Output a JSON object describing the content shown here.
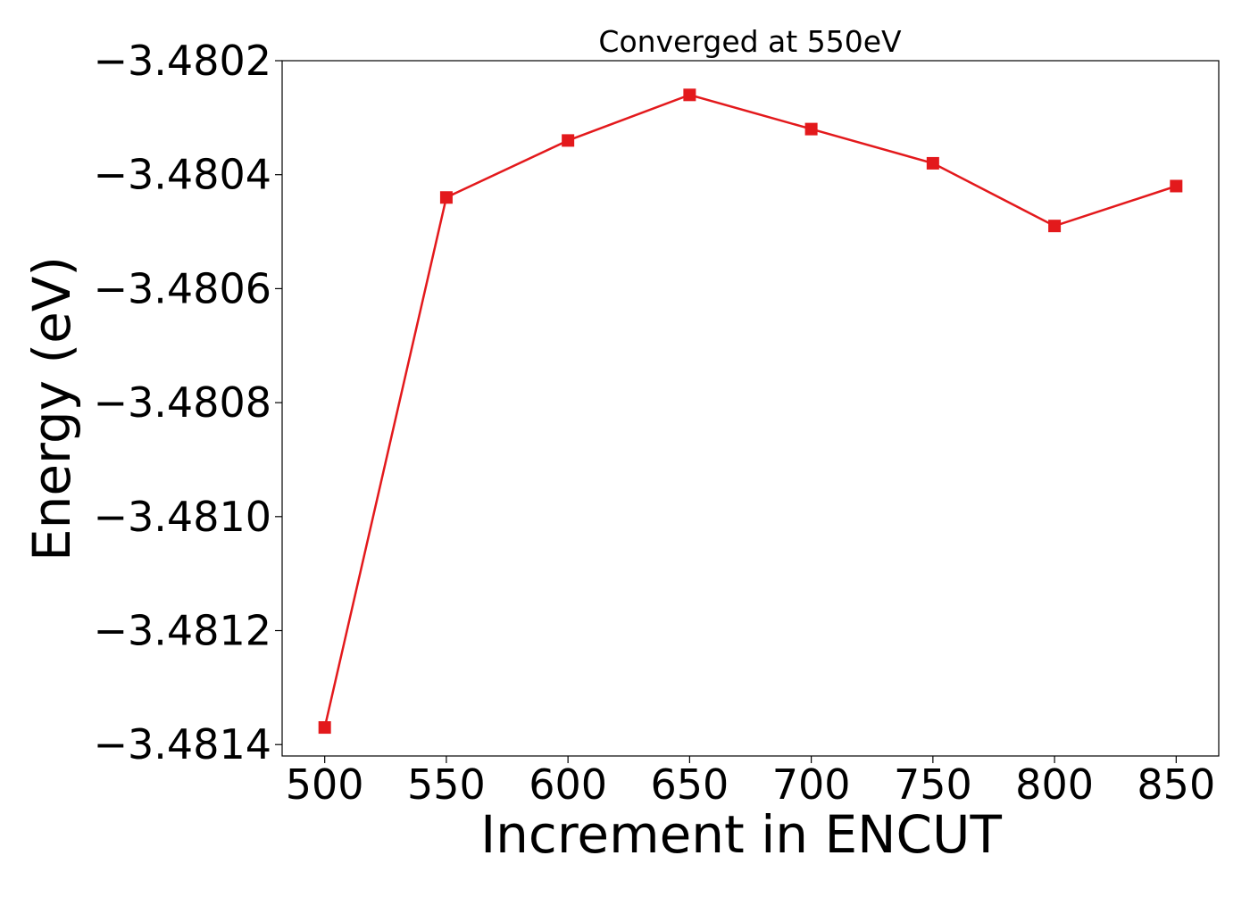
{
  "chart_data": {
    "type": "line",
    "title": "Converged at 550eV",
    "xlabel": "Increment in ENCUT",
    "ylabel": "Energy (eV)",
    "x": [
      500,
      550,
      600,
      650,
      700,
      750,
      800,
      850
    ],
    "series": [
      {
        "values": [
          -3.48137,
          -3.48044,
          -3.48034,
          -3.48026,
          -3.48032,
          -3.48038,
          -3.48049,
          -3.48042
        ],
        "color": "#e3191c",
        "marker": "square"
      }
    ],
    "xlim": [
      482.5,
      867.5
    ],
    "ylim": [
      -3.48142,
      -3.4802
    ],
    "x_ticks": [
      500,
      550,
      600,
      650,
      700,
      750,
      800,
      850
    ],
    "x_tick_labels": [
      "500",
      "550",
      "600",
      "650",
      "700",
      "750",
      "800",
      "850"
    ],
    "y_ticks": [
      -3.4814,
      -3.4812,
      -3.481,
      -3.4808,
      -3.4806,
      -3.4804,
      -3.4802
    ],
    "y_tick_labels": [
      "−3.4814",
      "−3.4812",
      "−3.4810",
      "−3.4808",
      "−3.4806",
      "−3.4804",
      "−3.4802"
    ],
    "grid": false,
    "legend": "none"
  }
}
